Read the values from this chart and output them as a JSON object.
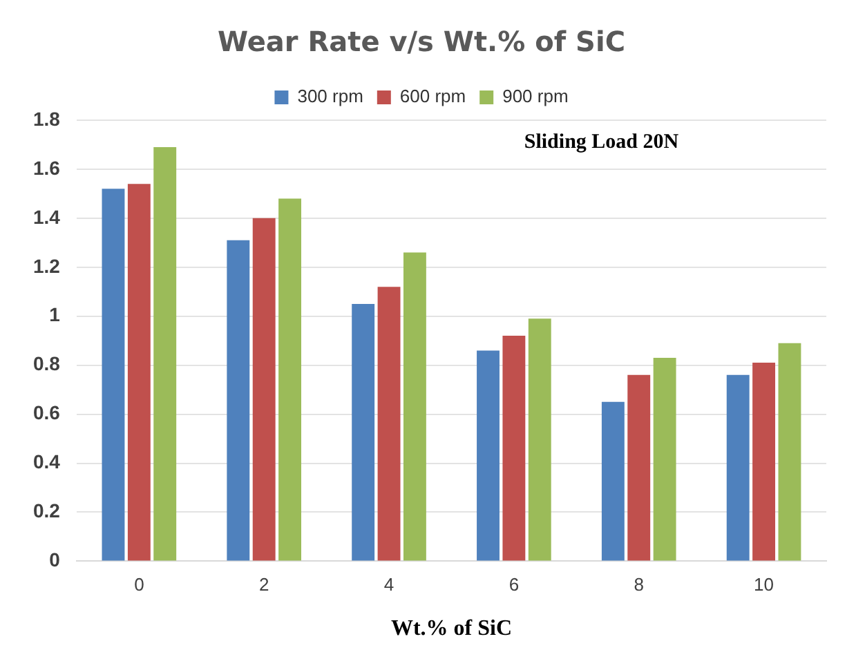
{
  "chart_data": {
    "type": "bar",
    "title": "Wear Rate v/s Wt.% of SiC",
    "xlabel": "Wt.% of SiC",
    "categories": [
      "0",
      "2",
      "4",
      "6",
      "8",
      "10"
    ],
    "series": [
      {
        "name": "300 rpm",
        "color": "#4f81bd",
        "values": [
          1.52,
          1.31,
          1.05,
          0.86,
          0.65,
          0.76
        ]
      },
      {
        "name": "600 rpm",
        "color": "#c0504d",
        "values": [
          1.54,
          1.4,
          1.12,
          0.92,
          0.76,
          0.81
        ]
      },
      {
        "name": "900 rpm",
        "color": "#9bbb59",
        "values": [
          1.69,
          1.48,
          1.26,
          0.99,
          0.83,
          0.89
        ]
      }
    ],
    "ylim": [
      0,
      1.8
    ],
    "yticks": [
      0,
      0.2,
      0.4,
      0.6,
      0.8,
      1,
      1.2,
      1.4,
      1.6,
      1.8
    ],
    "grid": "y",
    "legend": "top",
    "annotations": [
      "Sliding Load 20N"
    ]
  }
}
